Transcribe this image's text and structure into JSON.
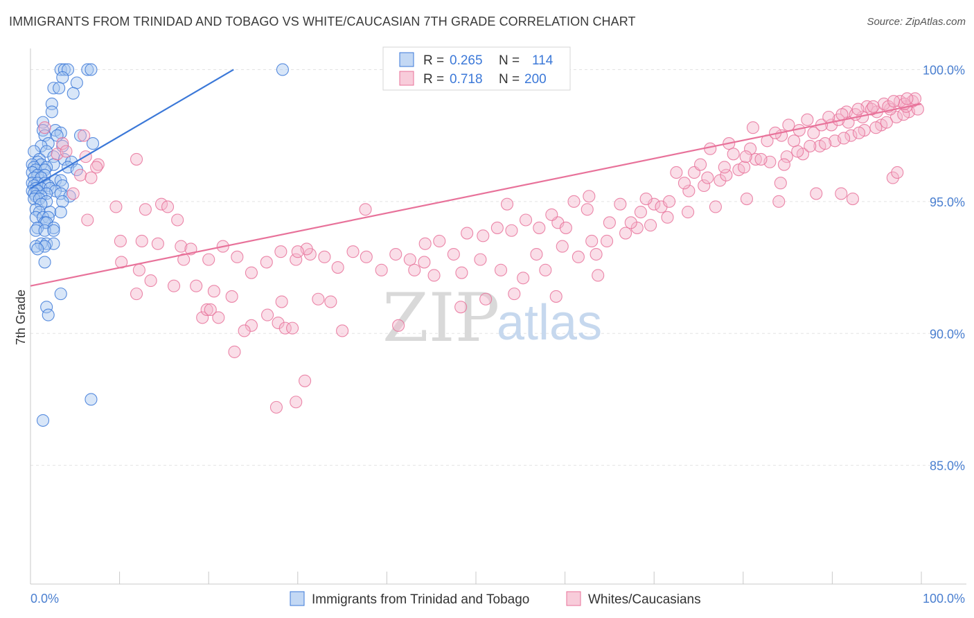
{
  "title": "IMMIGRANTS FROM TRINIDAD AND TOBAGO VS WHITE/CAUCASIAN 7TH GRADE CORRELATION CHART",
  "source": "Source: ZipAtlas.com",
  "watermark": {
    "zip": "ZIP",
    "atlas": "atlas"
  },
  "colors": {
    "blue": "#3b78d8",
    "blue_fill": "#a9c8f0",
    "pink": "#e8729a",
    "pink_fill": "#f5b6cb",
    "tick": "#4a7fd0",
    "grid": "#e3e3e3"
  },
  "legend": {
    "r_label": "R =",
    "n_label": "N =",
    "entries": [
      {
        "r": "0.265",
        "n": "114"
      },
      {
        "r": "0.718",
        "n": "200"
      }
    ]
  },
  "chart_data": {
    "type": "scatter",
    "title": "IMMIGRANTS FROM TRINIDAD AND TOBAGO VS WHITE/CAUCASIAN 7TH GRADE CORRELATION CHART",
    "xlabel": "",
    "ylabel": "7th Grade",
    "xlim": [
      0,
      100
    ],
    "ylim": [
      80.5,
      100.8
    ],
    "x_tick_labels": [
      "0.0%",
      "100.0%"
    ],
    "y_ticks": [
      85,
      90,
      95,
      100
    ],
    "y_tick_labels": [
      "85.0%",
      "90.0%",
      "95.0%",
      "100.0%"
    ],
    "grid": true,
    "legend_position": "top-center",
    "series": [
      {
        "name": "Immigrants from Trinidad and Tobago",
        "color": "#3b78d8",
        "trend": {
          "x": [
            0.0,
            22.8
          ],
          "y": [
            95.5,
            100.0
          ]
        },
        "points": [
          [
            3.4,
            100
          ],
          [
            3.8,
            100
          ],
          [
            4.2,
            100
          ],
          [
            6.4,
            100
          ],
          [
            6.8,
            100
          ],
          [
            28.3,
            100
          ],
          [
            3.6,
            99.7
          ],
          [
            5.2,
            99.5
          ],
          [
            2.6,
            99.3
          ],
          [
            3.2,
            99.3
          ],
          [
            4.8,
            99.1
          ],
          [
            2.4,
            98.7
          ],
          [
            2.4,
            98.4
          ],
          [
            1.4,
            98
          ],
          [
            1.4,
            97.7
          ],
          [
            2.8,
            97.7
          ],
          [
            3.4,
            97.6
          ],
          [
            1.6,
            97.5
          ],
          [
            3.0,
            97.5
          ],
          [
            5.6,
            97.5
          ],
          [
            2.0,
            97.2
          ],
          [
            7.0,
            97.2
          ],
          [
            1.2,
            97.1
          ],
          [
            3.6,
            97.1
          ],
          [
            0.4,
            96.9
          ],
          [
            1.8,
            96.9
          ],
          [
            2.6,
            96.7
          ],
          [
            1.0,
            96.6
          ],
          [
            0.8,
            96.5
          ],
          [
            3.8,
            96.6
          ],
          [
            4.6,
            96.5
          ],
          [
            0.2,
            96.4
          ],
          [
            1.2,
            96.4
          ],
          [
            2.6,
            96.4
          ],
          [
            0.4,
            96.3
          ],
          [
            1.8,
            96.3
          ],
          [
            4.2,
            96.3
          ],
          [
            0.6,
            96.2
          ],
          [
            1.6,
            96.2
          ],
          [
            5.2,
            96.2
          ],
          [
            0.2,
            96.1
          ],
          [
            0.8,
            96.0
          ],
          [
            1.6,
            96.0
          ],
          [
            0.4,
            95.9
          ],
          [
            1.2,
            95.9
          ],
          [
            2.8,
            95.8
          ],
          [
            3.4,
            95.8
          ],
          [
            0.2,
            95.7
          ],
          [
            0.8,
            95.7
          ],
          [
            1.6,
            95.7
          ],
          [
            0.4,
            95.6
          ],
          [
            2.0,
            95.6
          ],
          [
            3.6,
            95.6
          ],
          [
            0.6,
            95.5
          ],
          [
            1.2,
            95.5
          ],
          [
            2.2,
            95.5
          ],
          [
            0.2,
            95.4
          ],
          [
            0.8,
            95.4
          ],
          [
            2.8,
            95.4
          ],
          [
            0.4,
            95.3
          ],
          [
            1.8,
            95.3
          ],
          [
            3.4,
            95.3
          ],
          [
            0.6,
            95.2
          ],
          [
            1.2,
            95.2
          ],
          [
            4.4,
            95.2
          ],
          [
            0.4,
            95.1
          ],
          [
            1.0,
            95.1
          ],
          [
            1.8,
            95.0
          ],
          [
            3.6,
            95.0
          ],
          [
            1.2,
            94.9
          ],
          [
            0.6,
            94.7
          ],
          [
            1.0,
            94.6
          ],
          [
            2.2,
            94.6
          ],
          [
            3.4,
            94.6
          ],
          [
            0.6,
            94.4
          ],
          [
            1.4,
            94.4
          ],
          [
            2.0,
            94.4
          ],
          [
            1.6,
            94.2
          ],
          [
            1.8,
            94.2
          ],
          [
            0.8,
            94.0
          ],
          [
            2.6,
            94.0
          ],
          [
            0.6,
            93.9
          ],
          [
            1.6,
            93.9
          ],
          [
            2.6,
            93.9
          ],
          [
            1.2,
            93.4
          ],
          [
            1.8,
            93.4
          ],
          [
            2.6,
            93.4
          ],
          [
            0.6,
            93.3
          ],
          [
            1.6,
            93.3
          ],
          [
            0.8,
            93.2
          ],
          [
            1.6,
            92.7
          ],
          [
            3.4,
            91.5
          ],
          [
            1.8,
            91.0
          ],
          [
            2.0,
            90.7
          ],
          [
            6.8,
            87.5
          ],
          [
            1.4,
            86.7
          ]
        ]
      },
      {
        "name": "Whites/Caucasians",
        "color": "#e8729a",
        "trend": {
          "x": [
            0.0,
            100.0
          ],
          "y": [
            91.8,
            98.7
          ]
        },
        "points": [
          [
            1.6,
            97.8
          ],
          [
            3.6,
            97.2
          ],
          [
            6.0,
            97.5
          ],
          [
            3.0,
            96.8
          ],
          [
            4.0,
            96.9
          ],
          [
            6.2,
            96.7
          ],
          [
            7.6,
            96.4
          ],
          [
            7.4,
            96.3
          ],
          [
            11.9,
            96.6
          ],
          [
            5.6,
            96.0
          ],
          [
            6.8,
            95.9
          ],
          [
            4.8,
            95.3
          ],
          [
            9.6,
            94.8
          ],
          [
            14.7,
            94.9
          ],
          [
            15.4,
            94.8
          ],
          [
            12.9,
            94.7
          ],
          [
            6.4,
            94.3
          ],
          [
            16.5,
            94.3
          ],
          [
            10.1,
            93.5
          ],
          [
            12.5,
            93.5
          ],
          [
            14.3,
            93.4
          ],
          [
            16.9,
            93.3
          ],
          [
            18.0,
            93.2
          ],
          [
            17.2,
            92.8
          ],
          [
            10.2,
            92.7
          ],
          [
            12.2,
            92.4
          ],
          [
            13.5,
            92.0
          ],
          [
            16.1,
            91.8
          ],
          [
            11.9,
            91.5
          ],
          [
            18.6,
            91.8
          ],
          [
            20.6,
            91.6
          ],
          [
            22.6,
            91.4
          ],
          [
            19.3,
            90.6
          ],
          [
            19.8,
            90.9
          ],
          [
            20.2,
            90.9
          ],
          [
            21.1,
            90.6
          ],
          [
            24.8,
            90.3
          ],
          [
            24.0,
            90.1
          ],
          [
            27.8,
            90.4
          ],
          [
            28.2,
            91.2
          ],
          [
            26.6,
            90.7
          ],
          [
            28.6,
            90.2
          ],
          [
            29.4,
            90.2
          ],
          [
            32.3,
            91.3
          ],
          [
            33.7,
            91.2
          ],
          [
            35.0,
            90.1
          ],
          [
            41.3,
            90.3
          ],
          [
            48.3,
            91.0
          ],
          [
            51.1,
            91.3
          ],
          [
            54.3,
            91.5
          ],
          [
            59.0,
            91.4
          ],
          [
            63.7,
            92.2
          ],
          [
            63.5,
            93.0
          ],
          [
            65.0,
            94.2
          ],
          [
            66.8,
            93.8
          ],
          [
            53.5,
            94.9
          ],
          [
            59.2,
            94.2
          ],
          [
            63.0,
            93.5
          ],
          [
            60.1,
            94.0
          ],
          [
            64.7,
            93.5
          ],
          [
            62.5,
            94.7
          ],
          [
            68.1,
            94.0
          ],
          [
            69.6,
            94.1
          ],
          [
            71.5,
            94.4
          ],
          [
            73.8,
            94.6
          ],
          [
            76.9,
            94.8
          ],
          [
            80.4,
            95.1
          ],
          [
            84.0,
            95.0
          ],
          [
            84.2,
            95.7
          ],
          [
            88.2,
            95.3
          ],
          [
            91.0,
            95.3
          ],
          [
            92.3,
            95.1
          ],
          [
            96.8,
            95.9
          ],
          [
            97.3,
            96.1
          ],
          [
            70.0,
            94.9
          ],
          [
            68.5,
            94.6
          ],
          [
            67.4,
            94.2
          ],
          [
            70.8,
            94.8
          ],
          [
            71.7,
            95.0
          ],
          [
            73.9,
            95.4
          ],
          [
            75.6,
            95.6
          ],
          [
            77.4,
            95.8
          ],
          [
            79.5,
            96.2
          ],
          [
            81.4,
            96.6
          ],
          [
            83.0,
            96.5
          ],
          [
            84.9,
            96.7
          ],
          [
            86.7,
            96.8
          ],
          [
            88.6,
            97.1
          ],
          [
            90.3,
            97.3
          ],
          [
            92.1,
            97.5
          ],
          [
            93.6,
            97.7
          ],
          [
            95.5,
            97.9
          ],
          [
            97.2,
            98.2
          ],
          [
            98.6,
            98.4
          ],
          [
            99.6,
            98.5
          ],
          [
            74.5,
            96.1
          ],
          [
            76.0,
            95.9
          ],
          [
            78.1,
            96.0
          ],
          [
            80.1,
            96.3
          ],
          [
            82.0,
            96.6
          ],
          [
            84.6,
            96.4
          ],
          [
            86.1,
            96.9
          ],
          [
            87.5,
            97.1
          ],
          [
            89.2,
            97.2
          ],
          [
            91.3,
            97.4
          ],
          [
            93.0,
            97.6
          ],
          [
            94.9,
            97.8
          ],
          [
            96.1,
            98.0
          ],
          [
            98.0,
            98.3
          ],
          [
            85.7,
            97.3
          ],
          [
            87.9,
            97.6
          ],
          [
            89.9,
            97.9
          ],
          [
            91.8,
            98.0
          ],
          [
            93.4,
            98.2
          ],
          [
            95.0,
            98.4
          ],
          [
            96.5,
            98.5
          ],
          [
            98.3,
            98.6
          ],
          [
            99.0,
            98.8
          ],
          [
            91.6,
            98.4
          ],
          [
            93.9,
            98.6
          ],
          [
            95.8,
            98.7
          ],
          [
            97.6,
            98.8
          ],
          [
            99.3,
            98.9
          ],
          [
            88.8,
            97.9
          ],
          [
            90.7,
            98.1
          ],
          [
            92.6,
            98.3
          ],
          [
            94.4,
            98.5
          ],
          [
            96.3,
            98.6
          ],
          [
            98.1,
            98.7
          ],
          [
            89.6,
            98.2
          ],
          [
            91.1,
            98.3
          ],
          [
            92.9,
            98.5
          ],
          [
            94.6,
            98.6
          ],
          [
            96.9,
            98.8
          ],
          [
            98.4,
            98.9
          ],
          [
            80.8,
            97.0
          ],
          [
            82.7,
            97.3
          ],
          [
            84.3,
            97.5
          ],
          [
            86.3,
            97.7
          ],
          [
            78.4,
            97.2
          ],
          [
            81.1,
            97.8
          ],
          [
            83.6,
            97.6
          ],
          [
            85.1,
            97.9
          ],
          [
            87.2,
            98.1
          ],
          [
            76.3,
            97.0
          ],
          [
            78.9,
            96.8
          ],
          [
            80.3,
            96.7
          ],
          [
            75.2,
            96.4
          ],
          [
            77.9,
            96.3
          ],
          [
            72.5,
            96.1
          ],
          [
            73.4,
            95.7
          ],
          [
            69.1,
            95.1
          ],
          [
            66.2,
            94.9
          ],
          [
            62.7,
            95.2
          ],
          [
            61.0,
            95.0
          ],
          [
            58.5,
            94.5
          ],
          [
            57.1,
            94.0
          ],
          [
            55.6,
            94.3
          ],
          [
            54.0,
            93.9
          ],
          [
            52.4,
            94.0
          ],
          [
            50.8,
            93.7
          ],
          [
            49.0,
            93.8
          ],
          [
            47.5,
            93.0
          ],
          [
            45.9,
            93.5
          ],
          [
            44.3,
            93.4
          ],
          [
            42.6,
            92.8
          ],
          [
            41.0,
            93.0
          ],
          [
            39.4,
            92.4
          ],
          [
            37.7,
            92.9
          ],
          [
            36.2,
            93.1
          ],
          [
            34.5,
            92.5
          ],
          [
            33.0,
            92.9
          ],
          [
            31.4,
            93.0
          ],
          [
            29.8,
            92.8
          ],
          [
            28.1,
            93.1
          ],
          [
            26.5,
            92.7
          ],
          [
            24.8,
            92.3
          ],
          [
            23.2,
            92.9
          ],
          [
            21.6,
            93.3
          ],
          [
            20.0,
            92.8
          ],
          [
            56.8,
            93.0
          ],
          [
            52.8,
            92.4
          ],
          [
            50.5,
            92.8
          ],
          [
            48.4,
            92.3
          ],
          [
            45.3,
            92.2
          ],
          [
            43.1,
            92.4
          ],
          [
            59.7,
            93.3
          ],
          [
            61.5,
            92.9
          ],
          [
            57.8,
            92.4
          ],
          [
            55.3,
            92.1
          ],
          [
            37.6,
            94.7
          ],
          [
            44.2,
            92.7
          ],
          [
            30.8,
            88.2
          ],
          [
            29.8,
            87.4
          ],
          [
            27.6,
            87.2
          ],
          [
            22.9,
            89.3
          ],
          [
            31.0,
            93.2
          ],
          [
            30.0,
            93.1
          ]
        ]
      }
    ]
  },
  "bottom_legend": [
    {
      "label": "Immigrants from Trinidad and Tobago"
    },
    {
      "label": "Whites/Caucasians"
    }
  ]
}
